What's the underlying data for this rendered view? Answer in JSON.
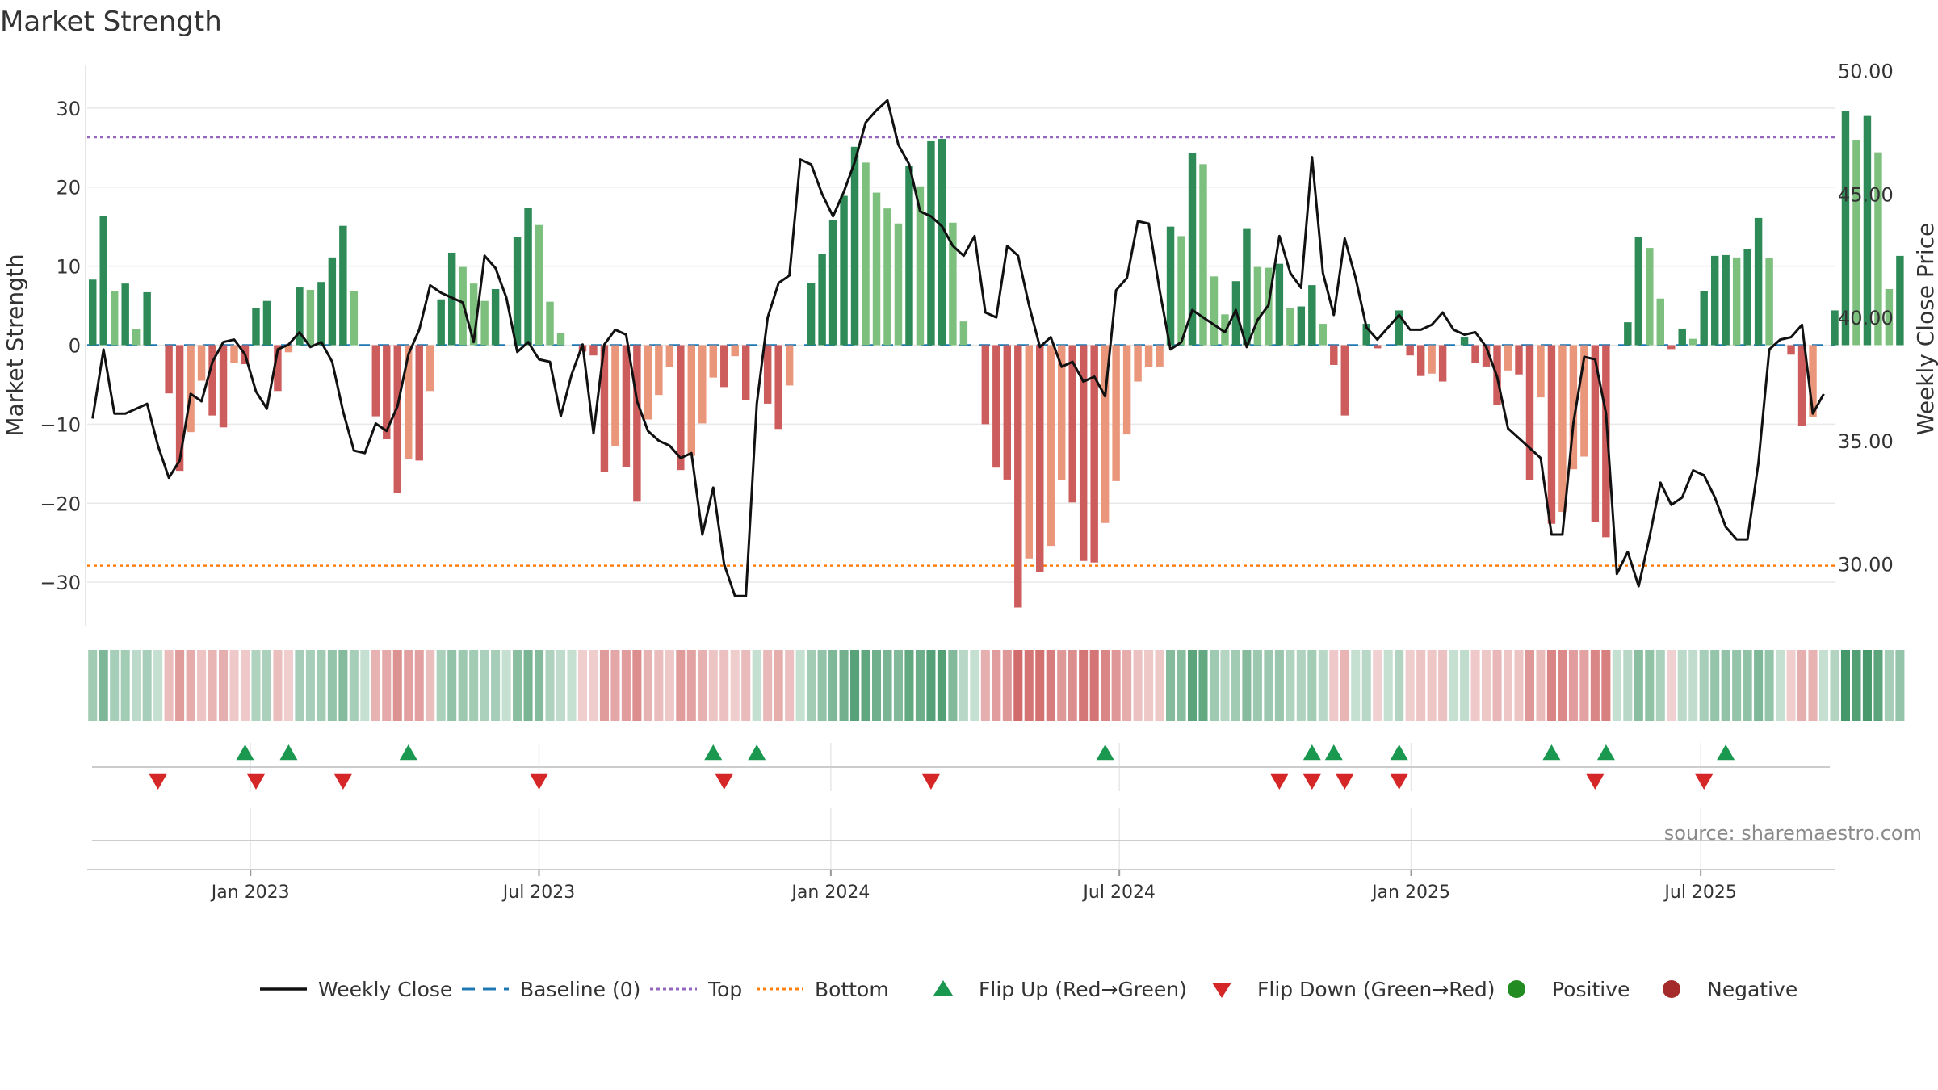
{
  "title": "Market Strength",
  "source": "source: sharemaestro.com",
  "colors": {
    "pos_strong": "#2e8b57",
    "pos_weak": "#7dbf7d",
    "neg_strong": "#cd5c5c",
    "neg_weak": "#e9967a",
    "line": "#111111",
    "baseline": "#1f77b4",
    "top": "#9467bd",
    "bottom": "#ff7f0e",
    "flip_up": "#1a9850",
    "flip_down": "#d62728",
    "positive": "#228b22",
    "negative": "#a52a2a",
    "grid": "#e8e8e8",
    "axis": "#bbbbbb",
    "text": "#333333"
  },
  "chart_data": {
    "type": "bar",
    "title": "Market Strength",
    "ylabel": "Market Strength",
    "y2label": "Weekly Close Price",
    "ylim": [
      -35.5,
      35.5
    ],
    "y2lim": [
      27.5,
      50.25
    ],
    "yticks": [
      {
        "value": 30,
        "label": "30"
      },
      {
        "value": 20,
        "label": "20"
      },
      {
        "value": 10,
        "label": "10"
      },
      {
        "value": 0,
        "label": "0"
      },
      {
        "value": -10,
        "label": "−10"
      },
      {
        "value": -20,
        "label": "−20"
      },
      {
        "value": -30,
        "label": "−30"
      }
    ],
    "y2ticks": [
      {
        "value": 50,
        "label": "50.00"
      },
      {
        "value": 45,
        "label": "45.00"
      },
      {
        "value": 40,
        "label": "40.00"
      },
      {
        "value": 35,
        "label": "35.00"
      },
      {
        "value": 30,
        "label": "30.00"
      }
    ],
    "xlim": [
      0,
      160.5
    ],
    "xticks": [
      {
        "week": 15,
        "label": "Jan 2023"
      },
      {
        "week": 41.5,
        "label": "Jul 2023"
      },
      {
        "week": 68.3,
        "label": "Jan 2024"
      },
      {
        "week": 94.8,
        "label": "Jul 2024"
      },
      {
        "week": 121.6,
        "label": "Jan 2025"
      },
      {
        "week": 148.2,
        "label": "Jul 2025"
      }
    ],
    "top_threshold": 26.3,
    "bottom_threshold": -27.9,
    "baseline": 0,
    "strength": [
      8.3,
      16.3,
      6.8,
      7.8,
      2.0,
      6.7,
      0,
      -6.1,
      -15.9,
      -11.0,
      -4.5,
      -8.9,
      -10.4,
      -2.2,
      -2.4,
      4.7,
      5.6,
      -5.8,
      -0.9,
      7.3,
      7.0,
      8.0,
      11.1,
      15.1,
      6.8,
      0,
      -9.0,
      -11.9,
      -18.7,
      -14.4,
      -14.6,
      -5.8,
      5.8,
      11.7,
      9.9,
      7.8,
      5.6,
      7.1,
      0,
      13.7,
      17.4,
      15.2,
      5.5,
      1.5,
      0,
      -0.8,
      -1.3,
      -16.0,
      -12.8,
      -15.4,
      -19.8,
      -9.4,
      -6.3,
      -2.8,
      -15.8,
      -14.0,
      -9.9,
      -4.1,
      -5.3,
      -1.4,
      -7.0,
      0,
      -7.4,
      -10.6,
      -5.1,
      0,
      7.9,
      11.5,
      15.8,
      18.9,
      25.1,
      23.1,
      19.3,
      17.3,
      15.4,
      22.7,
      20.1,
      25.8,
      26.1,
      15.5,
      3.0,
      0,
      -10.0,
      -15.5,
      -17.0,
      -33.2,
      -27.0,
      -28.7,
      -25.4,
      -17.1,
      -19.9,
      -27.3,
      -27.5,
      -22.5,
      -17.2,
      -11.3,
      -4.6,
      -2.8,
      -2.7,
      15.0,
      13.8,
      24.3,
      22.9,
      8.7,
      3.9,
      8.1,
      14.7,
      9.9,
      9.8,
      10.3,
      4.7,
      4.9,
      7.6,
      2.7,
      -2.5,
      -8.9,
      0,
      2.7,
      -0.4,
      0,
      4.4,
      -1.3,
      -3.9,
      -3.6,
      -4.6,
      0,
      1.0,
      -2.3,
      -2.7,
      -7.6,
      -3.2,
      -3.7,
      -17.1,
      -6.6,
      -22.6,
      -21.1,
      -15.7,
      -14.1,
      -22.4,
      -24.3,
      0,
      2.9,
      13.7,
      12.3,
      5.9,
      -0.5,
      2.1,
      0.8,
      6.8,
      11.3,
      11.4,
      11.1,
      12.2,
      16.1,
      11.0,
      0,
      -1.2,
      -10.2,
      -9.1,
      0,
      4.4,
      29.6,
      26.0,
      29.0,
      24.4,
      7.1,
      11.3
    ],
    "close": [
      35.9,
      38.7,
      36.1,
      36.1,
      36.3,
      36.5,
      34.8,
      33.5,
      34.2,
      36.9,
      36.6,
      38.2,
      39.0,
      39.1,
      38.5,
      37.0,
      36.3,
      38.7,
      38.9,
      39.4,
      38.8,
      39.0,
      38.2,
      36.2,
      34.6,
      34.5,
      35.7,
      35.4,
      36.4,
      38.5,
      39.5,
      41.3,
      41.0,
      40.8,
      40.6,
      39.0,
      42.5,
      42.0,
      40.8,
      38.6,
      39.0,
      38.3,
      38.2,
      36.0,
      37.7,
      38.9,
      35.3,
      38.9,
      39.5,
      39.3,
      36.6,
      35.4,
      35.0,
      34.8,
      34.3,
      34.5,
      31.2,
      33.1,
      30.0,
      28.7,
      28.7,
      36.5,
      40.0,
      41.4,
      41.7,
      46.4,
      46.2,
      45.0,
      44.1,
      45.1,
      46.3,
      47.9,
      48.4,
      48.8,
      47.0,
      46.2,
      44.3,
      44.1,
      43.7,
      42.9,
      42.5,
      43.3,
      40.2,
      40.0,
      42.9,
      42.5,
      40.5,
      38.8,
      39.2,
      38.0,
      38.2,
      37.4,
      37.6,
      36.8,
      41.1,
      41.6,
      43.9,
      43.8,
      41.1,
      38.7,
      39.0,
      40.3,
      40.0,
      39.7,
      39.4,
      40.3,
      38.8,
      39.9,
      40.5,
      43.3,
      41.8,
      41.2,
      46.5,
      41.8,
      40.1,
      43.2,
      41.6,
      39.6,
      39.1,
      39.6,
      40.1,
      39.5,
      39.5,
      39.7,
      40.2,
      39.5,
      39.3,
      39.4,
      38.8,
      37.6,
      35.5,
      35.1,
      34.7,
      34.3,
      31.2,
      31.2,
      35.7,
      38.4,
      38.3,
      36.1,
      29.6,
      30.5,
      29.1,
      31.1,
      33.3,
      32.4,
      32.7,
      33.8,
      33.6,
      32.7,
      31.5,
      31.0,
      31.0,
      34.1,
      38.7,
      39.1,
      39.2,
      39.7,
      36.1,
      36.9
    ],
    "positive_stocks": [],
    "negative_stocks": [],
    "flip_up_weeks": [
      14,
      18,
      29,
      57,
      61,
      93,
      112,
      114,
      120,
      134,
      139,
      150
    ],
    "flip_down_weeks": [
      6,
      15,
      23,
      41,
      58,
      77,
      109,
      112,
      115,
      120,
      138,
      148
    ],
    "legend": [
      {
        "key": "line",
        "label": "Weekly Close"
      },
      {
        "key": "baseline",
        "label": "Baseline (0)"
      },
      {
        "key": "top",
        "label": "Top"
      },
      {
        "key": "bottom",
        "label": "Bottom"
      },
      {
        "key": "flip_up",
        "label": "Flip Up (Red→Green)"
      },
      {
        "key": "flip_down",
        "label": "Flip Down (Green→Red)"
      },
      {
        "key": "positive",
        "label": "Positive"
      },
      {
        "key": "negative",
        "label": "Negative"
      }
    ],
    "legend_position": "bottom-center"
  }
}
